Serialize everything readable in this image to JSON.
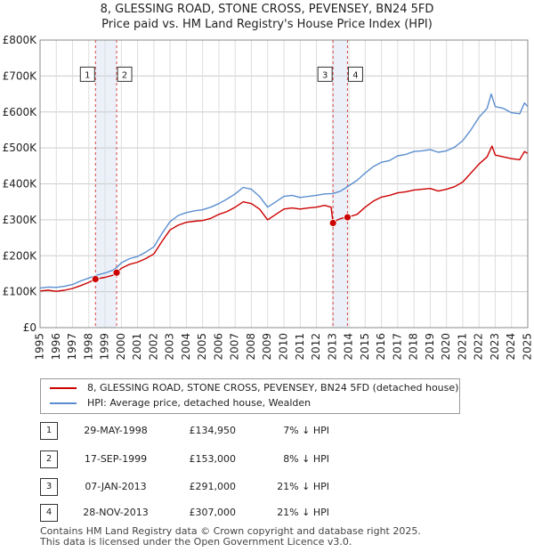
{
  "header": {
    "title_line1": "8, GLESSING ROAD, STONE CROSS, PEVENSEY, BN24 5FD",
    "title_line2": "Price paid vs. HM Land Registry's House Price Index (HPI)"
  },
  "chart_data": {
    "type": "line",
    "xlim": [
      1995,
      2025
    ],
    "ylim": [
      0,
      800000
    ],
    "yticks": [
      0,
      100000,
      200000,
      300000,
      400000,
      500000,
      600000,
      700000,
      800000
    ],
    "ytick_labels": [
      "£0",
      "£100K",
      "£200K",
      "£300K",
      "£400K",
      "£500K",
      "£600K",
      "£700K",
      "£800K"
    ],
    "xticks": [
      1995,
      1996,
      1997,
      1998,
      1999,
      2000,
      2001,
      2002,
      2003,
      2004,
      2005,
      2006,
      2007,
      2008,
      2009,
      2010,
      2011,
      2012,
      2013,
      2014,
      2015,
      2016,
      2017,
      2018,
      2019,
      2020,
      2021,
      2022,
      2023,
      2024,
      2025
    ],
    "xtick_labels": [
      "1995",
      "1996",
      "1997",
      "1998",
      "1999",
      "2000",
      "2001",
      "2002",
      "2003",
      "2004",
      "2005",
      "2006",
      "2007",
      "2008",
      "2009",
      "2010",
      "2011",
      "2012",
      "2013",
      "2014",
      "2015",
      "2016",
      "2017",
      "2018",
      "2019",
      "2020",
      "2021",
      "2022",
      "2023",
      "2024",
      "2025"
    ],
    "grid": true,
    "shaded_periods": [
      [
        1998.41,
        1999.71
      ],
      [
        2013.02,
        2013.91
      ]
    ],
    "series": [
      {
        "name": "8, GLESSING ROAD, STONE CROSS, PEVENSEY, BN24 5FD (detached house)",
        "color": "#cc0000",
        "x": [
          1995.0,
          1995.5,
          1996.0,
          1996.5,
          1997.0,
          1997.5,
          1998.0,
          1998.41,
          1999.0,
          1999.5,
          1999.71,
          2000.0,
          2000.5,
          2001.0,
          2001.5,
          2002.0,
          2002.5,
          2003.0,
          2003.5,
          2004.0,
          2004.5,
          2005.0,
          2005.5,
          2006.0,
          2006.5,
          2007.0,
          2007.5,
          2008.0,
          2008.5,
          2009.0,
          2009.5,
          2010.0,
          2010.5,
          2011.0,
          2011.5,
          2012.0,
          2012.5,
          2012.9,
          2013.02,
          2013.3,
          2013.6,
          2013.91,
          2014.5,
          2015.0,
          2015.5,
          2016.0,
          2016.5,
          2017.0,
          2017.5,
          2018.0,
          2018.5,
          2019.0,
          2019.5,
          2020.0,
          2020.5,
          2021.0,
          2021.5,
          2022.0,
          2022.5,
          2022.8,
          2023.0,
          2023.5,
          2024.0,
          2024.5,
          2024.8,
          2025.0
        ],
        "values": [
          102000,
          104000,
          101000,
          104000,
          109000,
          117000,
          126000,
          134950,
          140000,
          146000,
          153000,
          165000,
          176000,
          182000,
          192000,
          205000,
          240000,
          272000,
          285000,
          293000,
          296000,
          298000,
          304000,
          315000,
          323000,
          335000,
          350000,
          345000,
          330000,
          300000,
          315000,
          330000,
          333000,
          330000,
          333000,
          335000,
          340000,
          335000,
          291000,
          300000,
          305000,
          307000,
          315000,
          335000,
          352000,
          363000,
          368000,
          375000,
          378000,
          383000,
          385000,
          387000,
          380000,
          385000,
          392000,
          405000,
          430000,
          455000,
          475000,
          505000,
          480000,
          475000,
          470000,
          467000,
          490000,
          485000
        ]
      },
      {
        "name": "HPI: Average price, detached house, Wealden",
        "color": "#5b8ed0",
        "x": [
          1995.0,
          1995.5,
          1996.0,
          1996.5,
          1997.0,
          1997.5,
          1998.0,
          1998.41,
          1999.0,
          1999.5,
          1999.71,
          2000.0,
          2000.5,
          2001.0,
          2001.5,
          2002.0,
          2002.5,
          2003.0,
          2003.5,
          2004.0,
          2004.5,
          2005.0,
          2005.5,
          2006.0,
          2006.5,
          2007.0,
          2007.5,
          2008.0,
          2008.5,
          2009.0,
          2009.5,
          2010.0,
          2010.5,
          2011.0,
          2011.5,
          2012.0,
          2012.5,
          2013.0,
          2013.5,
          2014.0,
          2014.5,
          2015.0,
          2015.5,
          2016.0,
          2016.5,
          2017.0,
          2017.5,
          2018.0,
          2018.5,
          2019.0,
          2019.5,
          2020.0,
          2020.5,
          2021.0,
          2021.5,
          2022.0,
          2022.5,
          2022.75,
          2023.0,
          2023.5,
          2024.0,
          2024.5,
          2024.8,
          2025.0
        ],
        "values": [
          110000,
          113000,
          112000,
          115000,
          120000,
          130000,
          138000,
          145000,
          152000,
          160000,
          167000,
          180000,
          192000,
          198000,
          210000,
          225000,
          262000,
          295000,
          312000,
          320000,
          325000,
          328000,
          335000,
          345000,
          358000,
          372000,
          390000,
          385000,
          365000,
          335000,
          350000,
          365000,
          368000,
          362000,
          365000,
          368000,
          372000,
          373000,
          380000,
          395000,
          410000,
          430000,
          448000,
          460000,
          465000,
          478000,
          482000,
          490000,
          492000,
          495000,
          488000,
          492000,
          502000,
          520000,
          550000,
          585000,
          610000,
          650000,
          615000,
          610000,
          598000,
          595000,
          625000,
          615000
        ]
      }
    ],
    "transactions": [
      {
        "label": "1",
        "x": 1998.41,
        "value": 134950
      },
      {
        "label": "2",
        "x": 1999.71,
        "value": 153000
      },
      {
        "label": "3",
        "x": 2013.02,
        "value": 291000
      },
      {
        "label": "4",
        "x": 2013.91,
        "value": 307000
      }
    ]
  },
  "legend": {
    "property_label": "8, GLESSING ROAD, STONE CROSS, PEVENSEY, BN24 5FD (detached house)",
    "hpi_label": "HPI: Average price, detached house, Wealden",
    "property_color": "#cc0000",
    "hpi_color": "#5b8ed0"
  },
  "table": {
    "rows": [
      {
        "num": "1",
        "date": "29-MAY-1998",
        "price": "£134,950",
        "hpi": "7% ↓ HPI"
      },
      {
        "num": "2",
        "date": "17-SEP-1999",
        "price": "£153,000",
        "hpi": "8% ↓ HPI"
      },
      {
        "num": "3",
        "date": "07-JAN-2013",
        "price": "£291,000",
        "hpi": "21% ↓ HPI"
      },
      {
        "num": "4",
        "date": "28-NOV-2013",
        "price": "£307,000",
        "hpi": "21% ↓ HPI"
      }
    ]
  },
  "footer": {
    "line1": "Contains HM Land Registry data © Crown copyright and database right 2025.",
    "line2": "This data is licensed under the Open Government Licence v3.0."
  }
}
